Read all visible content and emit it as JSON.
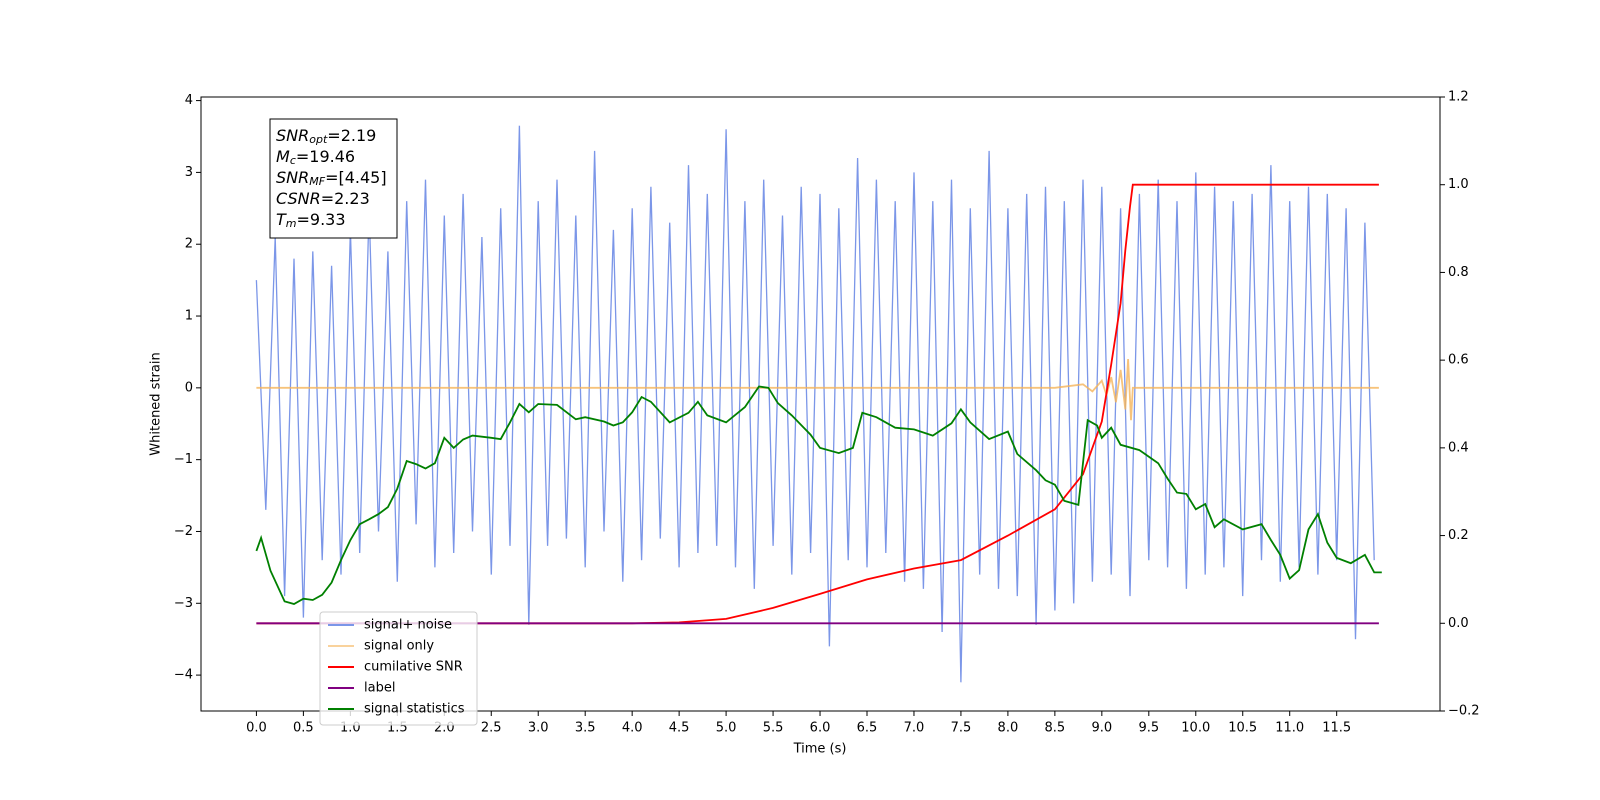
{
  "chart_data": {
    "type": "line",
    "xlabel": "Time (s)",
    "ylabel": "Whitened strain",
    "xlim": [
      -0.59,
      12.6
    ],
    "ylim": [
      -4.5,
      4.05
    ],
    "y2lim": [
      -0.2,
      1.2
    ],
    "xticks": [
      {
        "value": 0,
        "label": "0.0"
      },
      0.5,
      {
        "value": 1,
        "label": "1.0"
      },
      1.5,
      {
        "value": 2,
        "label": "2.0"
      },
      2.5,
      {
        "value": 3,
        "label": "3.0"
      },
      3.5,
      {
        "value": 4,
        "label": "4.0"
      },
      4.5,
      {
        "value": 5,
        "label": "5.0"
      },
      5.5,
      {
        "value": 6,
        "label": "6.0"
      },
      6.5,
      {
        "value": 7,
        "label": "7.0"
      },
      7.5,
      {
        "value": 8,
        "label": "8.0"
      },
      8.5,
      {
        "value": 9,
        "label": "9.0"
      },
      9.5,
      {
        "value": 10,
        "label": "10.0"
      },
      10.5,
      {
        "value": 11,
        "label": "11.0"
      },
      11.5
    ],
    "yticks": [
      {
        "value": -4,
        "label": "−4"
      },
      {
        "value": -3,
        "label": "−3"
      },
      {
        "value": -2,
        "label": "−2"
      },
      {
        "value": -1,
        "label": "−1"
      },
      0,
      1,
      2,
      3,
      4
    ],
    "y2ticks": [
      {
        "value": -0.2,
        "label": "−0.2"
      },
      {
        "value": 0,
        "label": "0.0"
      },
      0.2,
      0.4,
      0.6,
      0.8,
      {
        "value": 1,
        "label": "1.0"
      },
      1.2
    ],
    "legend": "lower left",
    "annotations": [
      {
        "text": "SNR",
        "sub": "opt",
        "rest": "=2.19"
      },
      {
        "text": "M",
        "sub": "c",
        "rest": "=19.46"
      },
      {
        "text": "SNR",
        "sub": "MF",
        "rest": "=[4.45]"
      },
      {
        "text": "CSNR",
        "rest": "=2.23"
      },
      {
        "text": "T",
        "sub": "m",
        "rest": "=9.33"
      }
    ],
    "series": [
      {
        "name": "signal+ noise",
        "color": "#7b96e8",
        "axis": "y",
        "x": [
          0,
          0.1,
          0.2,
          0.3,
          0.4,
          0.5,
          0.6,
          0.7,
          0.8,
          0.9,
          1,
          1.1,
          1.2,
          1.3,
          1.4,
          1.5,
          1.6,
          1.7,
          1.8,
          1.9,
          2,
          2.1,
          2.2,
          2.3,
          2.4,
          2.5,
          2.6,
          2.7,
          2.8,
          2.9,
          3,
          3.1,
          3.2,
          3.3,
          3.4,
          3.5,
          3.6,
          3.7,
          3.8,
          3.9,
          4,
          4.1,
          4.2,
          4.3,
          4.4,
          4.5,
          4.6,
          4.7,
          4.8,
          4.9,
          5,
          5.1,
          5.2,
          5.3,
          5.4,
          5.5,
          5.6,
          5.7,
          5.8,
          5.9,
          6,
          6.1,
          6.2,
          6.3,
          6.4,
          6.5,
          6.6,
          6.7,
          6.8,
          6.9,
          7,
          7.1,
          7.2,
          7.3,
          7.4,
          7.5,
          7.6,
          7.7,
          7.8,
          7.9,
          8,
          8.1,
          8.2,
          8.3,
          8.4,
          8.5,
          8.6,
          8.7,
          8.8,
          8.9,
          9,
          9.1,
          9.2,
          9.3,
          9.4,
          9.5,
          9.6,
          9.7,
          9.8,
          9.9,
          10,
          10.1,
          10.2,
          10.3,
          10.4,
          10.5,
          10.6,
          10.7,
          10.8,
          10.9,
          11,
          11.1,
          11.2,
          11.3,
          11.4,
          11.5,
          11.6,
          11.7,
          11.8,
          11.9
        ],
        "values": [
          1.5,
          -1.7,
          2.1,
          -2.9,
          1.8,
          -3.2,
          1.9,
          -2.4,
          1.7,
          -2.6,
          2.2,
          -2.3,
          2.5,
          -2.0,
          1.9,
          -2.7,
          2.6,
          -1.9,
          2.9,
          -2.5,
          2.4,
          -2.3,
          2.7,
          -2.0,
          2.1,
          -2.6,
          2.5,
          -2.2,
          3.65,
          -3.3,
          2.6,
          -2.2,
          2.9,
          -2.1,
          2.4,
          -2.5,
          3.3,
          -2.0,
          2.2,
          -2.7,
          2.5,
          -2.4,
          2.8,
          -2.1,
          2.3,
          -2.5,
          3.1,
          -2.3,
          2.7,
          -2.2,
          3.6,
          -2.5,
          2.6,
          -2.8,
          2.9,
          -2.2,
          2.4,
          -2.6,
          2.8,
          -2.3,
          2.7,
          -3.6,
          2.5,
          -2.4,
          3.2,
          -2.5,
          2.9,
          -2.3,
          2.6,
          -2.7,
          3.0,
          -2.8,
          2.6,
          -3.4,
          2.9,
          -4.1,
          2.5,
          -2.6,
          3.3,
          -2.8,
          2.5,
          -2.9,
          2.7,
          -3.3,
          2.8,
          -3.1,
          2.6,
          -3.0,
          2.9,
          -2.7,
          2.8,
          -2.6,
          2.5,
          -2.9,
          2.7,
          -2.4,
          2.9,
          -2.5,
          2.6,
          -2.8,
          3.0,
          -2.6,
          2.8,
          -2.5,
          2.6,
          -2.9,
          2.7,
          -2.4,
          3.1,
          -2.7,
          2.6,
          -2.5,
          2.8,
          -2.6,
          2.7,
          -2.4,
          2.5,
          -3.5,
          2.3,
          -2.4
        ]
      },
      {
        "name": "signal only",
        "color": "#f5b45a",
        "axis": "y",
        "x": [
          0,
          8.5,
          8.8,
          8.9,
          9.0,
          9.05,
          9.1,
          9.15,
          9.2,
          9.25,
          9.28,
          9.31,
          9.33,
          11.95
        ],
        "values": [
          0,
          0,
          0.05,
          -0.05,
          0.1,
          -0.1,
          0.15,
          -0.2,
          0.25,
          -0.3,
          0.4,
          -0.45,
          0,
          0
        ]
      },
      {
        "name": "cumilative SNR",
        "color": "#ff0000",
        "axis": "y2",
        "x": [
          0,
          4,
          4.5,
          5,
          5.5,
          6,
          6.5,
          7,
          7.5,
          8,
          8.5,
          8.8,
          9.0,
          9.1,
          9.2,
          9.25,
          9.3,
          9.33,
          11.95
        ],
        "values": [
          0,
          0,
          0.002,
          0.01,
          0.035,
          0.067,
          0.1,
          0.125,
          0.144,
          0.2,
          0.26,
          0.34,
          0.46,
          0.59,
          0.73,
          0.85,
          0.95,
          1,
          1
        ]
      },
      {
        "name": "label",
        "color": "#800080",
        "axis": "y2",
        "x": [
          0,
          11.95
        ],
        "values": [
          0,
          0
        ]
      },
      {
        "name": "signal statistics",
        "color": "#008000",
        "axis": "y2",
        "x": [
          0,
          0.05,
          0.15,
          0.3,
          0.4,
          0.5,
          0.6,
          0.7,
          0.8,
          0.9,
          1,
          1.1,
          1.2,
          1.3,
          1.4,
          1.5,
          1.6,
          1.7,
          1.8,
          1.9,
          2,
          2.1,
          2.2,
          2.3,
          2.5,
          2.6,
          2.7,
          2.8,
          2.9,
          3,
          3.2,
          3.4,
          3.5,
          3.7,
          3.8,
          3.9,
          4,
          4.1,
          4.2,
          4.4,
          4.6,
          4.7,
          4.8,
          5,
          5.2,
          5.35,
          5.45,
          5.55,
          5.7,
          5.9,
          6,
          6.2,
          6.35,
          6.45,
          6.6,
          6.8,
          7,
          7.2,
          7.4,
          7.5,
          7.6,
          7.8,
          8,
          8.1,
          8.3,
          8.4,
          8.5,
          8.6,
          8.75,
          8.85,
          8.95,
          9,
          9.1,
          9.2,
          9.4,
          9.6,
          9.7,
          9.8,
          9.9,
          10,
          10.1,
          10.2,
          10.3,
          10.5,
          10.7,
          10.8,
          10.9,
          11,
          11.1,
          11.2,
          11.3,
          11.4,
          11.5,
          11.65,
          11.8,
          11.9,
          11.98
        ],
        "values": [
          0.165,
          0.195,
          0.12,
          0.05,
          0.044,
          0.056,
          0.053,
          0.065,
          0.093,
          0.144,
          0.19,
          0.226,
          0.237,
          0.249,
          0.265,
          0.307,
          0.37,
          0.363,
          0.353,
          0.365,
          0.423,
          0.4,
          0.419,
          0.428,
          0.423,
          0.42,
          0.458,
          0.5,
          0.481,
          0.5,
          0.498,
          0.465,
          0.47,
          0.46,
          0.451,
          0.458,
          0.481,
          0.516,
          0.505,
          0.458,
          0.48,
          0.505,
          0.474,
          0.458,
          0.493,
          0.54,
          0.537,
          0.502,
          0.474,
          0.43,
          0.4,
          0.388,
          0.4,
          0.48,
          0.47,
          0.446,
          0.442,
          0.428,
          0.456,
          0.488,
          0.458,
          0.42,
          0.437,
          0.386,
          0.349,
          0.326,
          0.316,
          0.279,
          0.27,
          0.463,
          0.451,
          0.423,
          0.446,
          0.407,
          0.395,
          0.365,
          0.33,
          0.298,
          0.295,
          0.26,
          0.272,
          0.219,
          0.237,
          0.214,
          0.226,
          0.19,
          0.156,
          0.102,
          0.121,
          0.214,
          0.249,
          0.184,
          0.149,
          0.137,
          0.156,
          0.116,
          0.116
        ]
      }
    ]
  }
}
